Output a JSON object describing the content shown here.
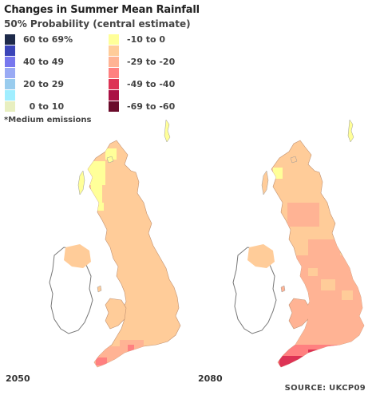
{
  "title": "Changes in Summer Mean Rainfall",
  "subtitle": "50% Probability (central estimate)",
  "legend": {
    "items": [
      {
        "label": "60 to 69%",
        "color": "#1e2a4a"
      },
      {
        "label": "-10 to 0",
        "color": "#ffff99"
      },
      {
        "label": "",
        "color": "#3a44b8"
      },
      {
        "label": "",
        "color": "#ffcc99"
      },
      {
        "label": "40 to 49",
        "color": "#7777ee"
      },
      {
        "label": "-29 to -20",
        "color": "#ffb394"
      },
      {
        "label": "",
        "color": "#99aaf4"
      },
      {
        "label": "",
        "color": "#ff8080"
      },
      {
        "label": "20 to 29",
        "color": "#99ccee"
      },
      {
        "label": "-49 to -40",
        "color": "#dd3355"
      },
      {
        "label": "",
        "color": "#a0eeff"
      },
      {
        "label": "",
        "color": "#aa1144"
      },
      {
        "label": "  0 to 10",
        "color": "#e8efc0"
      },
      {
        "label": "-69 to -60",
        "color": "#6a0a2a"
      }
    ]
  },
  "note": "*Medium emissions",
  "maps": [
    {
      "year": "2050"
    },
    {
      "year": "2080"
    }
  ],
  "source": "SOURCE: UKCP09",
  "colors": {
    "land_base": "#ffcc99",
    "dry_moderate": "#ffb394",
    "dry_strong": "#ff8080",
    "dry_very_strong": "#dd3355",
    "slight_dry": "#ffff99",
    "ireland_outline": "#666666"
  }
}
